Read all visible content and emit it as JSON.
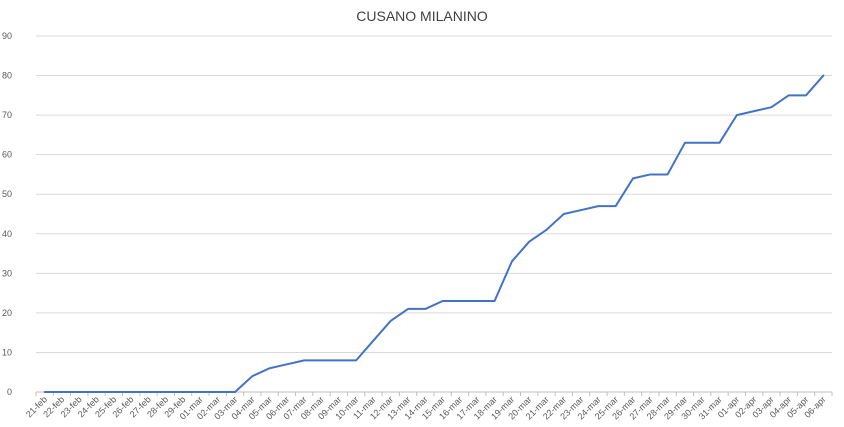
{
  "chart_data": {
    "type": "line",
    "title": "CUSANO MILANINO",
    "xlabel": "",
    "ylabel": "",
    "ylim": [
      0,
      90
    ],
    "yticks": [
      0,
      10,
      20,
      30,
      40,
      50,
      60,
      70,
      80,
      90
    ],
    "grid": true,
    "legend": "none",
    "categories": [
      "21-feb",
      "22-feb",
      "23-feb",
      "24-feb",
      "25-feb",
      "26-feb",
      "27-feb",
      "28-feb",
      "29-feb",
      "01-mar",
      "02-mar",
      "03-mar",
      "04-mar",
      "05-mar",
      "06-mar",
      "07-mar",
      "08-mar",
      "09-mar",
      "10-mar",
      "11-mar",
      "12-mar",
      "13-mar",
      "14-mar",
      "15-mar",
      "16-mar",
      "17-mar",
      "18-mar",
      "19-mar",
      "20-mar",
      "21-mar",
      "22-mar",
      "23-mar",
      "24-mar",
      "25-mar",
      "26-mar",
      "27-mar",
      "28-mar",
      "29-mar",
      "30-mar",
      "31-mar",
      "01-apr",
      "02-apr",
      "03-apr",
      "04-apr",
      "05-apr",
      "06-apr"
    ],
    "series": [
      {
        "color": "#4472c4",
        "values": [
          0,
          0,
          0,
          0,
          0,
          0,
          0,
          0,
          0,
          0,
          0,
          0,
          4,
          6,
          7,
          8,
          8,
          8,
          8,
          13,
          18,
          21,
          21,
          23,
          23,
          23,
          23,
          33,
          38,
          41,
          45,
          46,
          47,
          47,
          54,
          55,
          55,
          63,
          63,
          63,
          70,
          71,
          72,
          75,
          75,
          80
        ]
      }
    ],
    "colors": {
      "line": "#4472c4",
      "grid": "#d9d9d9",
      "axis": "#bfbfbf",
      "text": "#595959"
    }
  }
}
